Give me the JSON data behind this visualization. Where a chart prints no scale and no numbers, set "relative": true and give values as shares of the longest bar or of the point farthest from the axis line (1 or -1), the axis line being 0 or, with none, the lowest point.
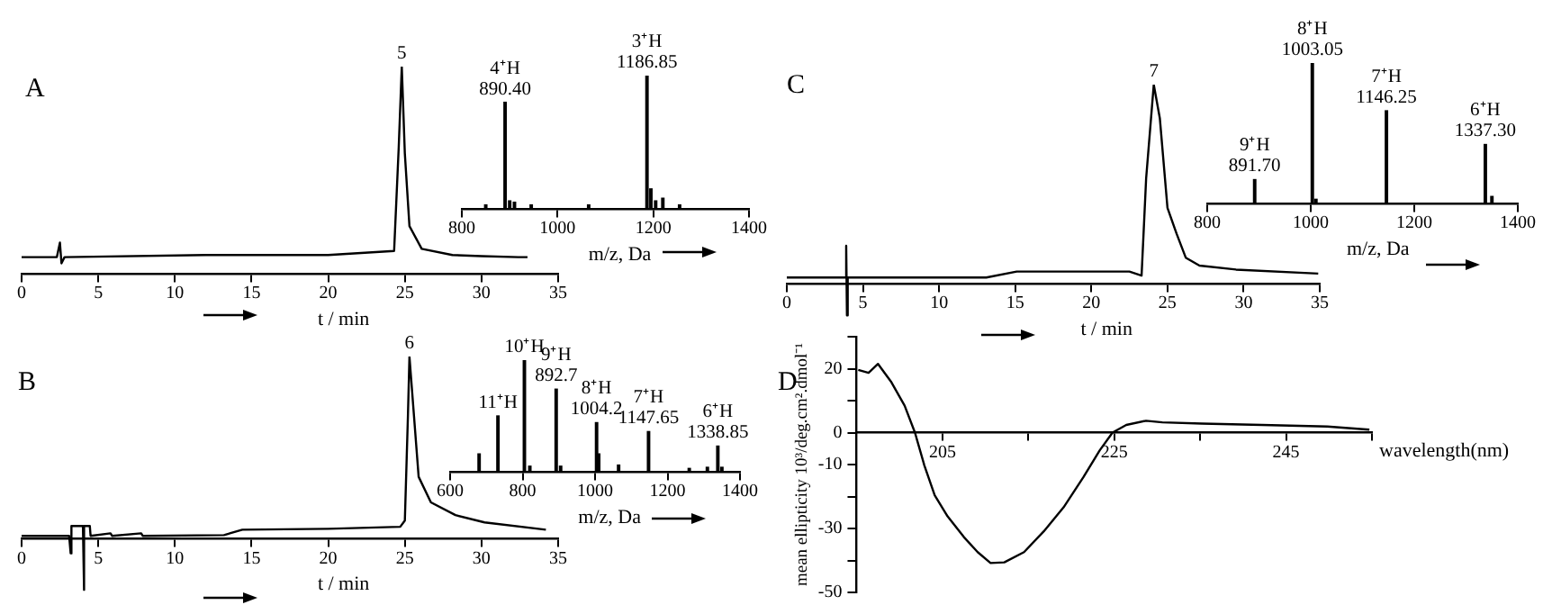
{
  "chart_data": [
    {
      "type": "line",
      "title": "A",
      "relative": true,
      "color": "#000000",
      "xlim": [
        0,
        35
      ],
      "xticks": [
        0,
        5,
        10,
        15,
        20,
        25,
        30,
        35
      ],
      "xlabel": "t / min",
      "x": [
        0,
        2.3,
        2.5,
        2.6,
        2.8,
        12,
        20,
        24.3,
        24.6,
        24.8,
        25,
        25.3,
        26.1,
        28.1,
        30,
        32.4,
        33
      ],
      "values": [
        0.08,
        0.08,
        0.15,
        0.05,
        0.08,
        0.09,
        0.09,
        0.11,
        0.61,
        1,
        0.58,
        0.23,
        0.12,
        0.09,
        0.085,
        0.08,
        0.08
      ],
      "annotations": [
        {
          "text": "5",
          "x": 24.8,
          "y": 1
        }
      ]
    },
    {
      "type": "bar",
      "relative": true,
      "color": "#000000",
      "xlim": [
        800,
        1400
      ],
      "xticks": [
        800,
        1000,
        1200,
        1400
      ],
      "xlabel": "m/z, Da",
      "x": [
        850,
        890.4,
        900,
        910,
        945,
        1065,
        1186.85,
        1195,
        1205,
        1220,
        1255
      ],
      "values": [
        0.03,
        0.8,
        0.06,
        0.05,
        0.03,
        0.03,
        1,
        0.15,
        0.06,
        0.08,
        0.03
      ],
      "annotations": [
        {
          "text": "4⁺H\n890.40",
          "x": 890.4,
          "y": 0.8
        },
        {
          "text": "3⁺H\n1186.85",
          "x": 1186.85,
          "y": 1
        }
      ]
    },
    {
      "type": "line",
      "title": "B",
      "relative": true,
      "color": "#000000",
      "xlim": [
        0,
        35
      ],
      "xticks": [
        0,
        5,
        10,
        15,
        20,
        25,
        30,
        35
      ],
      "xlabel": "t / min",
      "x": [
        0,
        3.1,
        3.2,
        3.25,
        3.3,
        4.0,
        4.05,
        4.1,
        4.45,
        4.5,
        5.8,
        5.9,
        7.8,
        7.9,
        13.2,
        14.4,
        20,
        24.7,
        25,
        25.2,
        25.3,
        25.6,
        25.9,
        26.7,
        28.3,
        30.2,
        34.2
      ],
      "values": [
        0.016,
        0.016,
        -0.08,
        0.07,
        0.07,
        0.07,
        -0.28,
        0.07,
        0.07,
        0.016,
        0.03,
        0.016,
        0.03,
        0.016,
        0.02,
        0.05,
        0.055,
        0.066,
        0.1,
        0.67,
        1,
        0.67,
        0.34,
        0.2,
        0.13,
        0.09,
        0.05
      ],
      "annotations": [
        {
          "text": "6",
          "x": 25.3,
          "y": 1
        }
      ]
    },
    {
      "type": "bar",
      "relative": true,
      "color": "#000000",
      "xlim": [
        600,
        1400
      ],
      "xticks": [
        600,
        800,
        1000,
        1200,
        1400
      ],
      "xlabel": "m/z, Da",
      "x": [
        680,
        732,
        805,
        820,
        892.7,
        905,
        1004.2,
        1010,
        1065,
        1147.65,
        1260,
        1310,
        1338.85,
        1350
      ],
      "values": [
        0.16,
        0.5,
        1,
        0.05,
        0.74,
        0.05,
        0.44,
        0.16,
        0.06,
        0.36,
        0.03,
        0.04,
        0.23,
        0.04
      ],
      "annotations": [
        {
          "text": "11⁺H",
          "x": 732,
          "y": 0.5
        },
        {
          "text": "10⁺H",
          "x": 805,
          "y": 1
        },
        {
          "text": "9⁺H\n892.7",
          "x": 892.7,
          "y": 0.74
        },
        {
          "text": "8⁺H\n1004.2",
          "x": 1004.2,
          "y": 0.44
        },
        {
          "text": "7⁺H\n1147.65",
          "x": 1147.65,
          "y": 0.36
        },
        {
          "text": "6⁺H\n1338.85",
          "x": 1338.85,
          "y": 0.23
        }
      ]
    },
    {
      "type": "line",
      "title": "C",
      "relative": true,
      "color": "#000000",
      "xlim": [
        0,
        35
      ],
      "xticks": [
        0,
        5,
        10,
        15,
        20,
        25,
        30,
        35
      ],
      "xlabel": "t / min",
      "x": [
        0,
        3.8,
        3.9,
        3.95,
        4.0,
        13.1,
        15.1,
        22.5,
        23.3,
        23.6,
        24.1,
        24.5,
        25.0,
        25.6,
        26.2,
        27.1,
        29.5,
        34.9
      ],
      "values": [
        0.03,
        0.03,
        0.19,
        -0.16,
        0.03,
        0.03,
        0.06,
        0.06,
        0.04,
        0.53,
        1,
        0.83,
        0.38,
        0.25,
        0.13,
        0.09,
        0.07,
        0.05
      ],
      "annotations": [
        {
          "text": "7",
          "x": 24.1,
          "y": 1
        }
      ]
    },
    {
      "type": "bar",
      "relative": true,
      "color": "#000000",
      "xlim": [
        800,
        1400
      ],
      "xticks": [
        800,
        1000,
        1200,
        1400
      ],
      "xlabel": "m/z, Da",
      "x": [
        891.7,
        1003.05,
        1010,
        1146.25,
        1337.3,
        1350
      ],
      "values": [
        0.17,
        1,
        0.03,
        0.66,
        0.42,
        0.05
      ],
      "annotations": [
        {
          "text": "9⁺H\n891.70",
          "x": 891.7,
          "y": 0.17
        },
        {
          "text": "8⁺H\n1003.05",
          "x": 1003.05,
          "y": 1
        },
        {
          "text": "7⁺H\n1146.25",
          "x": 1146.25,
          "y": 0.66
        },
        {
          "text": "6⁺H\n1337.30",
          "x": 1337.3,
          "y": 0.42
        }
      ]
    },
    {
      "type": "line",
      "title": "D",
      "color": "#000000",
      "xlim": [
        195,
        255
      ],
      "xticks": [
        {
          "value": 195,
          "label": null
        },
        205,
        {
          "value": 215,
          "label": null
        },
        225,
        {
          "value": 235,
          "label": null
        },
        245,
        {
          "value": 255,
          "label": null
        }
      ],
      "xlabel": "wavelength(nm)",
      "ylim": [
        -50,
        30
      ],
      "yticks": [
        {
          "value": 30,
          "label": null
        },
        20,
        {
          "value": 10,
          "label": null
        },
        0,
        -10,
        {
          "value": -20,
          "label": null
        },
        -30,
        {
          "value": -40,
          "label": null
        },
        -50
      ],
      "ylabel": "mean ellipticity 10³/deg.cm².dmol⁻¹",
      "x": [
        195.2,
        196.4,
        197.5,
        199,
        200.6,
        201.8,
        202.9,
        204.1,
        205.6,
        207.5,
        209.1,
        210.6,
        212.2,
        214.5,
        216.8,
        219.1,
        221.4,
        223.3,
        224.8,
        226.4,
        228.7,
        230.6,
        235.2,
        242.2,
        249.8,
        254.7
      ],
      "values": [
        19.6,
        18.7,
        21.5,
        16,
        8.4,
        0,
        -10.3,
        -19.6,
        -26.2,
        -32.7,
        -37.4,
        -40.8,
        -40.6,
        -37.4,
        -30.9,
        -23.4,
        -14,
        -5.6,
        0,
        2.4,
        3.7,
        3.2,
        2.8,
        2.4,
        1.9,
        0.9
      ]
    }
  ]
}
